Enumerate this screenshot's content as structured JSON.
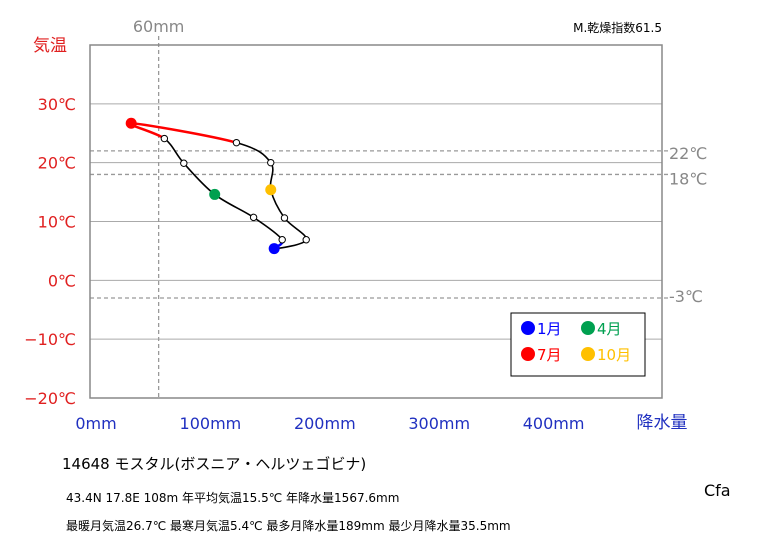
{
  "chart_data": {
    "type": "line",
    "title": "14648  モスタル(ボスニア・ヘルツェゴビナ)",
    "index_label": "M.乾燥指数61.5",
    "koppen": "Cfa",
    "ylabel": "気温",
    "xlabel": "降水量",
    "xlim": [
      0,
      500
    ],
    "ylim": [
      -20,
      40
    ],
    "yticks": [
      "30℃",
      "20℃",
      "10℃",
      "0℃",
      "−10℃",
      "−20℃"
    ],
    "ytick_values": [
      30,
      20,
      10,
      0,
      -10,
      -20
    ],
    "xticks": [
      "0mm",
      "100mm",
      "200mm",
      "300mm",
      "400mm"
    ],
    "xtick_values": [
      0,
      100,
      200,
      300,
      400
    ],
    "ref_vertical": {
      "value": 60,
      "label": "60mm"
    },
    "ref_horizontal": [
      {
        "value": 22,
        "label": "22℃"
      },
      {
        "value": 18,
        "label": "18℃"
      },
      {
        "value": -3,
        "label": "-3℃"
      }
    ],
    "series": [
      {
        "months": [
          1,
          2,
          3,
          4,
          5,
          6,
          7,
          8,
          9,
          10,
          11,
          12
        ],
        "precip": [
          161,
          168,
          143,
          109,
          82,
          65,
          36,
          128,
          158,
          158,
          170,
          189
        ],
        "temp": [
          5.4,
          6.9,
          10.7,
          14.6,
          19.9,
          24.1,
          26.7,
          23.4,
          20.0,
          15.4,
          10.6,
          6.9
        ]
      }
    ],
    "highlight_months": [
      {
        "month": 1,
        "color": "#0000ff"
      },
      {
        "month": 4,
        "color": "#00a050"
      },
      {
        "month": 7,
        "color": "#ff0000"
      },
      {
        "month": 10,
        "color": "#ffc000"
      }
    ],
    "legend": [
      {
        "label": "1月",
        "color": "#0000ff",
        "text_color": "#0000ff"
      },
      {
        "label": "4月",
        "color": "#00a050",
        "text_color": "#00a050"
      },
      {
        "label": "7月",
        "color": "#ff0000",
        "text_color": "#ff0000"
      },
      {
        "label": "10月",
        "color": "#ffc000",
        "text_color": "#ffc000"
      }
    ],
    "legend_position": "bottom-right",
    "grid": true
  },
  "info": {
    "line1": "43.4N  17.8E 108m  年平均気温15.5℃ 年降水量1567.6mm",
    "line2": "最暖月気温26.7℃ 最寒月気温5.4℃ 最多月降水量189mm 最少月降水量35.5mm"
  },
  "colors": {
    "temp_axis": "#e02020",
    "precip_axis": "#2030c0",
    "ref_line": "#999999",
    "curve": "#000000"
  }
}
